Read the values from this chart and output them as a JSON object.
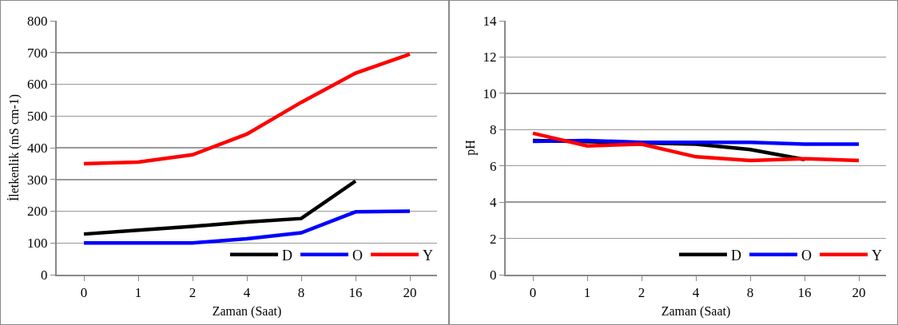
{
  "chart_data": [
    {
      "type": "line",
      "categories": [
        "0",
        "1",
        "2",
        "4",
        "8",
        "16",
        "20"
      ],
      "xlabel": "Zaman (Saat)",
      "ylabel": "İletkenlik (mS cm-1)",
      "ylim": [
        0,
        800
      ],
      "yticks": [
        0,
        100,
        200,
        300,
        400,
        500,
        600,
        700,
        800
      ],
      "grid": "y",
      "legend": "bottom right",
      "marker": "none",
      "line_style": "solid",
      "series": [
        {
          "name": "D",
          "color": "#000000",
          "values": [
            128,
            140,
            152,
            166,
            177,
            295,
            null
          ]
        },
        {
          "name": "O",
          "color": "#0000ff",
          "values": [
            100,
            100,
            100,
            113,
            132,
            198,
            200
          ]
        },
        {
          "name": "Y",
          "color": "#ff0000",
          "values": [
            350,
            355,
            378,
            443,
            543,
            635,
            695
          ]
        }
      ]
    },
    {
      "type": "line",
      "categories": [
        "0",
        "1",
        "2",
        "4",
        "8",
        "16",
        "20"
      ],
      "xlabel": "Zaman (Saat)",
      "ylabel": "pH",
      "ylim": [
        0,
        14
      ],
      "yticks": [
        0,
        2,
        4,
        6,
        8,
        10,
        12,
        14
      ],
      "grid": "y",
      "legend": "bottom right",
      "marker": "none",
      "line_style": "solid",
      "series": [
        {
          "name": "D",
          "color": "#000000",
          "values": [
            7.4,
            null,
            null,
            7.2,
            6.9,
            6.35,
            null
          ]
        },
        {
          "name": "O",
          "color": "#0000ff",
          "values": [
            7.35,
            7.4,
            7.3,
            7.3,
            7.3,
            7.2,
            7.2
          ]
        },
        {
          "name": "Y",
          "color": "#ff0000",
          "values": [
            7.8,
            7.1,
            7.2,
            6.5,
            6.3,
            6.4,
            6.3
          ]
        }
      ]
    }
  ]
}
